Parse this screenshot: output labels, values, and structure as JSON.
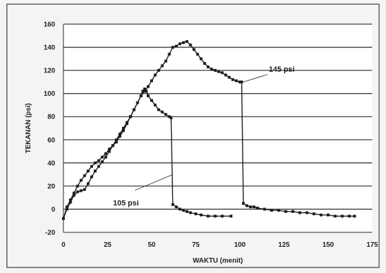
{
  "chart_data": {
    "type": "scatter",
    "xlabel": "WAKTU (menit)",
    "ylabel": "TEKANAN (psi)",
    "xlim": [
      0,
      175
    ],
    "ylim": [
      -20,
      160
    ],
    "xticks": [
      0,
      25,
      50,
      75,
      100,
      125,
      150,
      175
    ],
    "yticks": [
      -20,
      0,
      20,
      40,
      60,
      80,
      100,
      120,
      140,
      160
    ],
    "grid": "horizontal",
    "series": [
      {
        "peak": 105,
        "values": [
          [
            0,
            -8
          ],
          [
            2,
            0
          ],
          [
            4,
            6
          ],
          [
            6,
            12
          ],
          [
            8,
            15
          ],
          [
            10,
            16
          ],
          [
            12,
            17
          ],
          [
            14,
            22
          ],
          [
            16,
            28
          ],
          [
            18,
            33
          ],
          [
            20,
            37
          ],
          [
            22,
            41
          ],
          [
            24,
            45
          ],
          [
            26,
            50
          ],
          [
            28,
            55
          ],
          [
            30,
            60
          ],
          [
            32,
            65
          ],
          [
            34,
            70
          ],
          [
            36,
            75
          ],
          [
            38,
            80
          ],
          [
            40,
            86
          ],
          [
            42,
            92
          ],
          [
            44,
            98
          ],
          [
            45,
            102
          ],
          [
            46,
            104
          ],
          [
            47,
            102
          ],
          [
            48,
            98
          ],
          [
            50,
            94
          ],
          [
            52,
            90
          ],
          [
            54,
            86
          ],
          [
            56,
            84
          ],
          [
            58,
            82
          ],
          [
            60,
            80
          ],
          [
            61,
            79
          ],
          [
            62,
            4
          ],
          [
            64,
            2
          ],
          [
            66,
            0
          ],
          [
            68,
            -1
          ],
          [
            70,
            -2
          ],
          [
            72,
            -3
          ],
          [
            75,
            -4
          ],
          [
            78,
            -5
          ],
          [
            82,
            -6
          ],
          [
            86,
            -6
          ],
          [
            90,
            -6
          ],
          [
            95,
            -6
          ]
        ]
      },
      {
        "peak": 145,
        "values": [
          [
            0,
            -8
          ],
          [
            2,
            2
          ],
          [
            4,
            8
          ],
          [
            6,
            14
          ],
          [
            8,
            20
          ],
          [
            10,
            25
          ],
          [
            12,
            29
          ],
          [
            14,
            33
          ],
          [
            16,
            37
          ],
          [
            18,
            40
          ],
          [
            20,
            42
          ],
          [
            22,
            45
          ],
          [
            24,
            48
          ],
          [
            26,
            52
          ],
          [
            28,
            55
          ],
          [
            30,
            58
          ],
          [
            32,
            63
          ],
          [
            34,
            68
          ],
          [
            36,
            74
          ],
          [
            38,
            80
          ],
          [
            40,
            86
          ],
          [
            42,
            92
          ],
          [
            44,
            98
          ],
          [
            46,
            102
          ],
          [
            48,
            106
          ],
          [
            50,
            111
          ],
          [
            52,
            116
          ],
          [
            54,
            120
          ],
          [
            56,
            124
          ],
          [
            58,
            128
          ],
          [
            60,
            134
          ],
          [
            62,
            140
          ],
          [
            64,
            141
          ],
          [
            66,
            143
          ],
          [
            68,
            144
          ],
          [
            70,
            145
          ],
          [
            72,
            142
          ],
          [
            74,
            138
          ],
          [
            76,
            134
          ],
          [
            78,
            130
          ],
          [
            80,
            126
          ],
          [
            82,
            123
          ],
          [
            84,
            121
          ],
          [
            86,
            120
          ],
          [
            88,
            119
          ],
          [
            90,
            118
          ],
          [
            92,
            116
          ],
          [
            94,
            114
          ],
          [
            96,
            112
          ],
          [
            98,
            111
          ],
          [
            100,
            110
          ],
          [
            101,
            110
          ],
          [
            102,
            5
          ],
          [
            104,
            3
          ],
          [
            106,
            2
          ],
          [
            108,
            2
          ],
          [
            110,
            1
          ],
          [
            114,
            0
          ],
          [
            118,
            -1
          ],
          [
            122,
            -1
          ],
          [
            126,
            -2
          ],
          [
            130,
            -2
          ],
          [
            134,
            -3
          ],
          [
            138,
            -3
          ],
          [
            142,
            -4
          ],
          [
            146,
            -5
          ],
          [
            150,
            -5
          ],
          [
            154,
            -6
          ],
          [
            158,
            -6
          ],
          [
            162,
            -6
          ],
          [
            165,
            -6
          ]
        ]
      }
    ],
    "annotations": [
      {
        "text": "105 psi",
        "target": [
          62,
          30
        ]
      },
      {
        "text": "145 psi",
        "target": [
          102,
          110
        ]
      }
    ]
  }
}
